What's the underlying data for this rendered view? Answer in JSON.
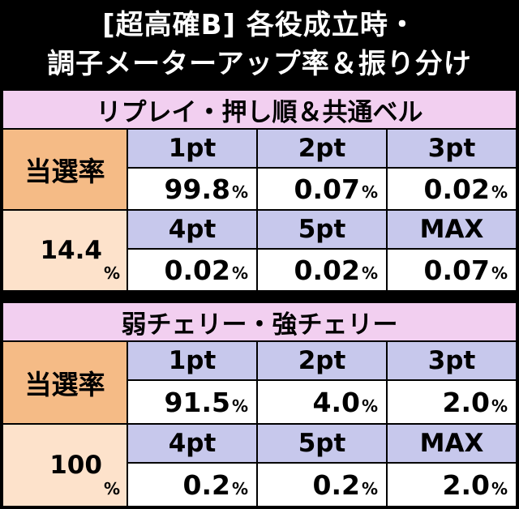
{
  "title": {
    "line1": "[超高確B] 各役成立時・",
    "line2": "調子メーターアップ率＆振り分け"
  },
  "sections": [
    {
      "header": "リプレイ・押し順＆共通ベル",
      "label": "当選率",
      "rate": "14.4",
      "pts_row1": [
        "1pt",
        "2pt",
        "3pt"
      ],
      "vals_row1": [
        "99.8",
        "0.07",
        "0.02"
      ],
      "pts_row2": [
        "4pt",
        "5pt",
        "MAX"
      ],
      "vals_row2": [
        "0.02",
        "0.02",
        "0.07"
      ]
    },
    {
      "header": "弱チェリー・強チェリー",
      "label": "当選率",
      "rate": "100",
      "pts_row1": [
        "1pt",
        "2pt",
        "3pt"
      ],
      "vals_row1": [
        "91.5",
        "4.0",
        "2.0"
      ],
      "pts_row2": [
        "4pt",
        "5pt",
        "MAX"
      ],
      "vals_row2": [
        "0.2",
        "0.2",
        "2.0"
      ]
    }
  ],
  "percent_sign": "%",
  "colors": {
    "header_bg": "#f2cff0",
    "label_bg": "#f5bb86",
    "rate_bg": "#fde2cb",
    "pt_bg": "#c7c8ec",
    "value_bg": "#ffffff",
    "border": "#000000"
  }
}
